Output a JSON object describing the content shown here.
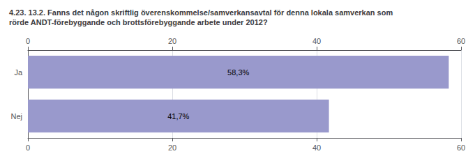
{
  "chart_data": {
    "type": "bar",
    "orientation": "horizontal",
    "title": "4.23. 13.2. Fanns det någon skriftlig överenskommelse/samverkansavtal för denna lokala samverkan som\nrörde ANDT-förebyggande och brottsförebyggande arbete under 2012?",
    "categories": [
      "Ja",
      "Nej"
    ],
    "values": [
      58.3,
      41.7
    ],
    "value_labels": [
      "58,3%",
      "41,7%"
    ],
    "data_labels": true,
    "color": "#9999cc",
    "xlim": [
      0,
      60
    ],
    "xticks": [
      0,
      20,
      40,
      60
    ],
    "grid": true
  }
}
